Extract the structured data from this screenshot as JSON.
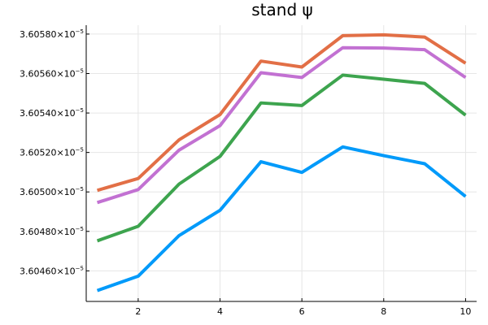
{
  "chart_data": {
    "type": "line",
    "title": "stand ψ",
    "xlabel": "",
    "ylabel": "",
    "x": [
      1,
      2,
      3,
      4,
      5,
      6,
      7,
      8,
      9,
      10
    ],
    "xlim": [
      0.73,
      10.27
    ],
    "ylim": [
      3.604445e-05,
      3.605845e-05
    ],
    "xticks": [
      2,
      4,
      6,
      8,
      10
    ],
    "xtick_labels": [
      "2",
      "4",
      "6",
      "8",
      "10"
    ],
    "yticks": [
      3.6046e-05,
      3.6048e-05,
      3.605e-05,
      3.6052e-05,
      3.6054e-05,
      3.6056e-05,
      3.6058e-05
    ],
    "ytick_mantissas": [
      "3.60460",
      "3.60480",
      "3.60500",
      "3.60520",
      "3.60540",
      "3.60560",
      "3.60580"
    ],
    "ytick_times": "×10",
    "ytick_exponent": "−5",
    "grid": true,
    "legend": "none",
    "series": [
      {
        "color": "#009AFA",
        "values": [
          3.6045e-05,
          3.604573e-05,
          3.604779e-05,
          3.604907e-05,
          3.605153e-05,
          3.605099e-05,
          3.605228e-05,
          3.605184e-05,
          3.605143e-05,
          3.604977e-05
        ]
      },
      {
        "color": "#3DA44E",
        "values": [
          3.604752e-05,
          3.604826e-05,
          3.60504e-05,
          3.60518e-05,
          3.605451e-05,
          3.605438e-05,
          3.605592e-05,
          3.605571e-05,
          3.60555e-05,
          3.605389e-05
        ]
      },
      {
        "color": "#C271D2",
        "values": [
          3.604946e-05,
          3.605012e-05,
          3.605212e-05,
          3.605336e-05,
          3.605604e-05,
          3.60558e-05,
          3.605731e-05,
          3.605729e-05,
          3.605721e-05,
          3.60558e-05
        ]
      },
      {
        "color": "#E26F46",
        "values": [
          3.605008e-05,
          3.605068e-05,
          3.605264e-05,
          3.605392e-05,
          3.605663e-05,
          3.605633e-05,
          3.605792e-05,
          3.605796e-05,
          3.605785e-05,
          3.605652e-05
        ]
      }
    ]
  }
}
